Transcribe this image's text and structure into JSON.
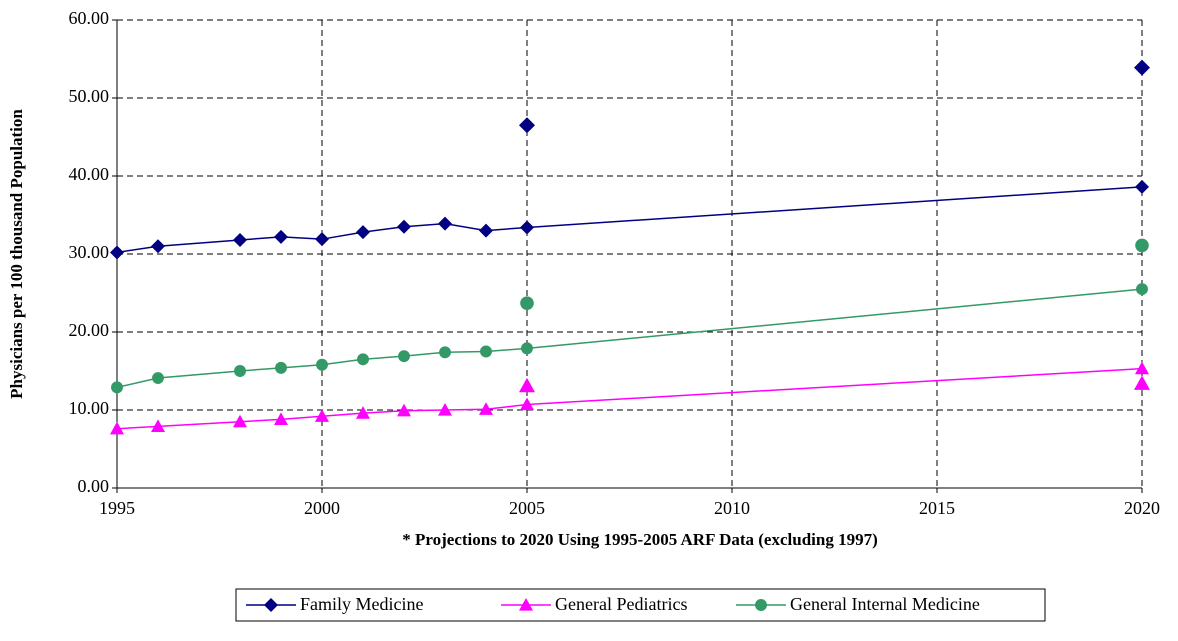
{
  "chart_data": {
    "type": "line",
    "xlabel": "* Projections to 2020 Using 1995-2005 ARF Data (excluding 1997)",
    "ylabel": "Physicians per 100 thousand Population",
    "xlim": [
      1995,
      2020
    ],
    "xticks": [
      1995,
      2000,
      2005,
      2010,
      2015,
      2020
    ],
    "ylim": [
      0,
      60
    ],
    "yticks": [
      {
        "value": 0,
        "label": "0.00"
      },
      {
        "value": 10,
        "label": "10.00"
      },
      {
        "value": 20,
        "label": "20.00"
      },
      {
        "value": 30,
        "label": "30.00"
      },
      {
        "value": 40,
        "label": "40.00"
      },
      {
        "value": 50,
        "label": "50.00"
      },
      {
        "value": 60,
        "label": "60.00"
      }
    ],
    "grid": true,
    "legend": "bottom",
    "series": [
      {
        "name": "Family Medicine",
        "color": "#000080",
        "marker": "diamond",
        "x": [
          1995,
          1996,
          1998,
          1999,
          2000,
          2001,
          2002,
          2003,
          2004,
          2005,
          2020
        ],
        "values": [
          30.2,
          31.0,
          31.8,
          32.2,
          31.9,
          32.8,
          33.5,
          33.9,
          33.0,
          33.4,
          38.6
        ],
        "points_only": {
          "x": [
            2005,
            2020
          ],
          "values": [
            46.5,
            53.9
          ]
        }
      },
      {
        "name": "General Pediatrics",
        "color": "#ff00ff",
        "marker": "triangle",
        "x": [
          1995,
          1996,
          1998,
          1999,
          2000,
          2001,
          2002,
          2003,
          2004,
          2005,
          2020
        ],
        "values": [
          7.6,
          7.9,
          8.5,
          8.8,
          9.2,
          9.6,
          9.9,
          10.0,
          10.1,
          10.7,
          15.3
        ],
        "points_only": {
          "x": [
            2005,
            2020
          ],
          "values": [
            13.1,
            13.4
          ]
        }
      },
      {
        "name": "General Internal Medicine",
        "color": "#339966",
        "marker": "circle",
        "x": [
          1995,
          1996,
          1998,
          1999,
          2000,
          2001,
          2002,
          2003,
          2004,
          2005,
          2020
        ],
        "values": [
          12.9,
          14.1,
          15.0,
          15.4,
          15.8,
          16.5,
          16.9,
          17.4,
          17.5,
          17.9,
          25.5
        ],
        "points_only": {
          "x": [
            2005,
            2020
          ],
          "values": [
            23.7,
            31.1
          ]
        }
      }
    ]
  }
}
